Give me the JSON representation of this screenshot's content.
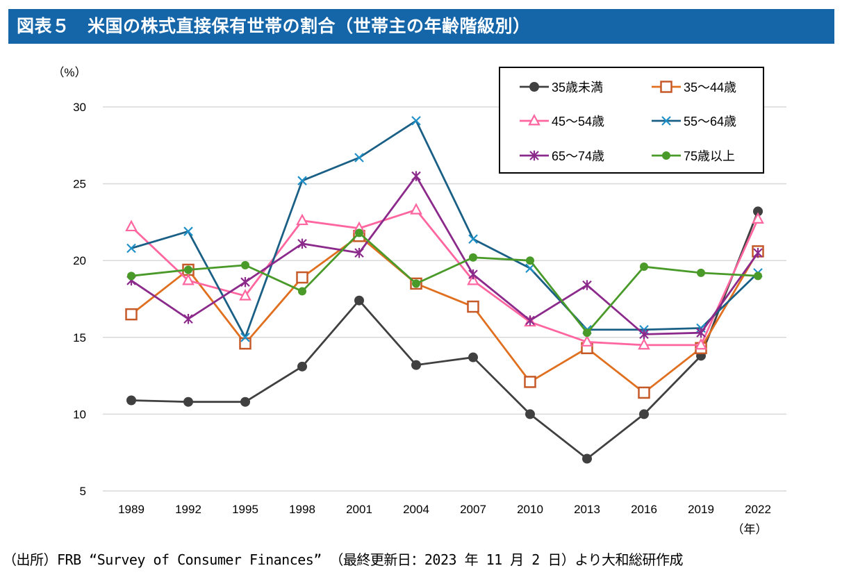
{
  "title": "図表５　米国の株式直接保有世帯の割合（世帯主の年齢階級別）",
  "footer": "（出所）FRB “Survey of Consumer Finances” （最終更新日：2023 年 11 月 2 日）より大和総研作成",
  "chart_data": {
    "type": "line",
    "title": "米国の株式直接保有世帯の割合（世帯主の年齢階級別）",
    "ylabel": "（%）",
    "xlabel": "（年）",
    "ylim": [
      5,
      30
    ],
    "yticks": [
      30,
      25,
      20,
      15,
      10,
      5
    ],
    "grid": true,
    "legend_position": "top-right",
    "categories": [
      "1989",
      "1992",
      "1995",
      "1998",
      "2001",
      "2004",
      "2007",
      "2010",
      "2013",
      "2016",
      "2019",
      "2022"
    ],
    "series": [
      {
        "name": "35歳未満",
        "color": "#404040",
        "marker": "circle",
        "values": [
          10.9,
          10.8,
          10.8,
          13.1,
          17.4,
          13.2,
          13.7,
          10.0,
          7.1,
          10.0,
          13.8,
          23.2
        ]
      },
      {
        "name": "35〜44歳",
        "color": "#e07020",
        "marker_color": "#c55a28",
        "marker": "square-open",
        "values": [
          16.5,
          19.4,
          14.6,
          18.9,
          21.6,
          18.5,
          17.0,
          12.1,
          14.3,
          11.4,
          14.3,
          20.6
        ]
      },
      {
        "name": "45〜54歳",
        "color": "#ff66a0",
        "marker": "triangle-open",
        "values": [
          22.2,
          18.7,
          17.7,
          22.6,
          22.1,
          23.3,
          18.7,
          16.0,
          14.7,
          14.5,
          14.5,
          22.7
        ]
      },
      {
        "name": "55〜64歳",
        "color": "#1a5f85",
        "marker_color": "#1e90c8",
        "marker": "x",
        "values": [
          20.8,
          21.9,
          15.0,
          25.2,
          26.7,
          29.1,
          21.4,
          19.5,
          15.5,
          15.5,
          15.6,
          19.2
        ]
      },
      {
        "name": "65〜74歳",
        "color": "#8b2a8b",
        "marker": "star",
        "values": [
          18.7,
          16.2,
          18.6,
          21.1,
          20.5,
          25.5,
          19.1,
          16.1,
          18.4,
          15.2,
          15.3,
          20.5
        ]
      },
      {
        "name": "75歳以上",
        "color": "#4a9a2a",
        "marker": "circle",
        "values": [
          19.0,
          19.4,
          19.7,
          18.0,
          21.8,
          18.5,
          20.2,
          20.0,
          15.3,
          19.6,
          19.2,
          19.0
        ]
      }
    ]
  }
}
